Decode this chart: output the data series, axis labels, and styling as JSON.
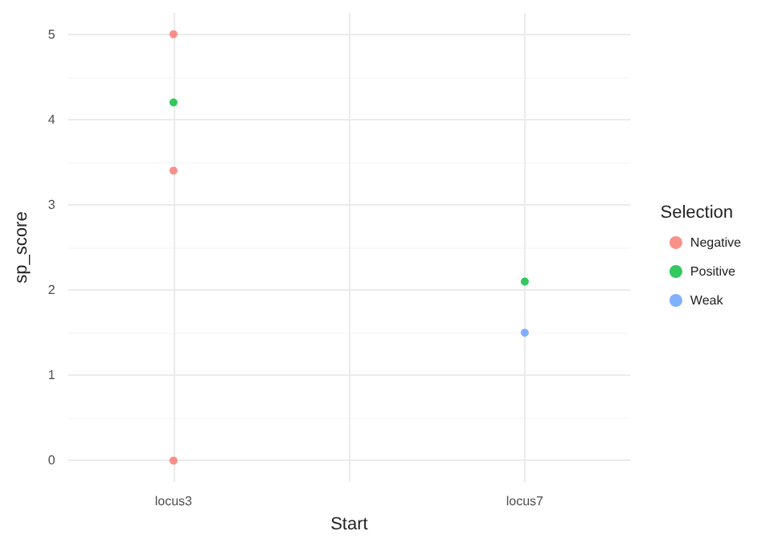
{
  "chart_data": {
    "type": "scatter",
    "xlabel": "Start",
    "ylabel": "sp_score",
    "legend_title": "Selection",
    "categories": [
      "locus3",
      null,
      "locus7"
    ],
    "series": [
      {
        "name": "Negative",
        "color": "#f8766d",
        "x": [
          "locus3",
          "locus3",
          "locus3"
        ],
        "values": [
          5,
          3.4,
          0
        ]
      },
      {
        "name": "Positive",
        "color": "#00ba38",
        "x": [
          "locus3",
          "locus7"
        ],
        "values": [
          4.2,
          2.1
        ]
      },
      {
        "name": "Weak",
        "color": "#619cff",
        "x": [
          "locus7"
        ],
        "values": [
          1.5
        ]
      }
    ],
    "ylim": [
      -0.25,
      5.25
    ],
    "yticks": [
      0,
      1,
      2,
      3,
      4,
      5
    ],
    "grid": true,
    "legend": "right",
    "marker": "circle"
  }
}
